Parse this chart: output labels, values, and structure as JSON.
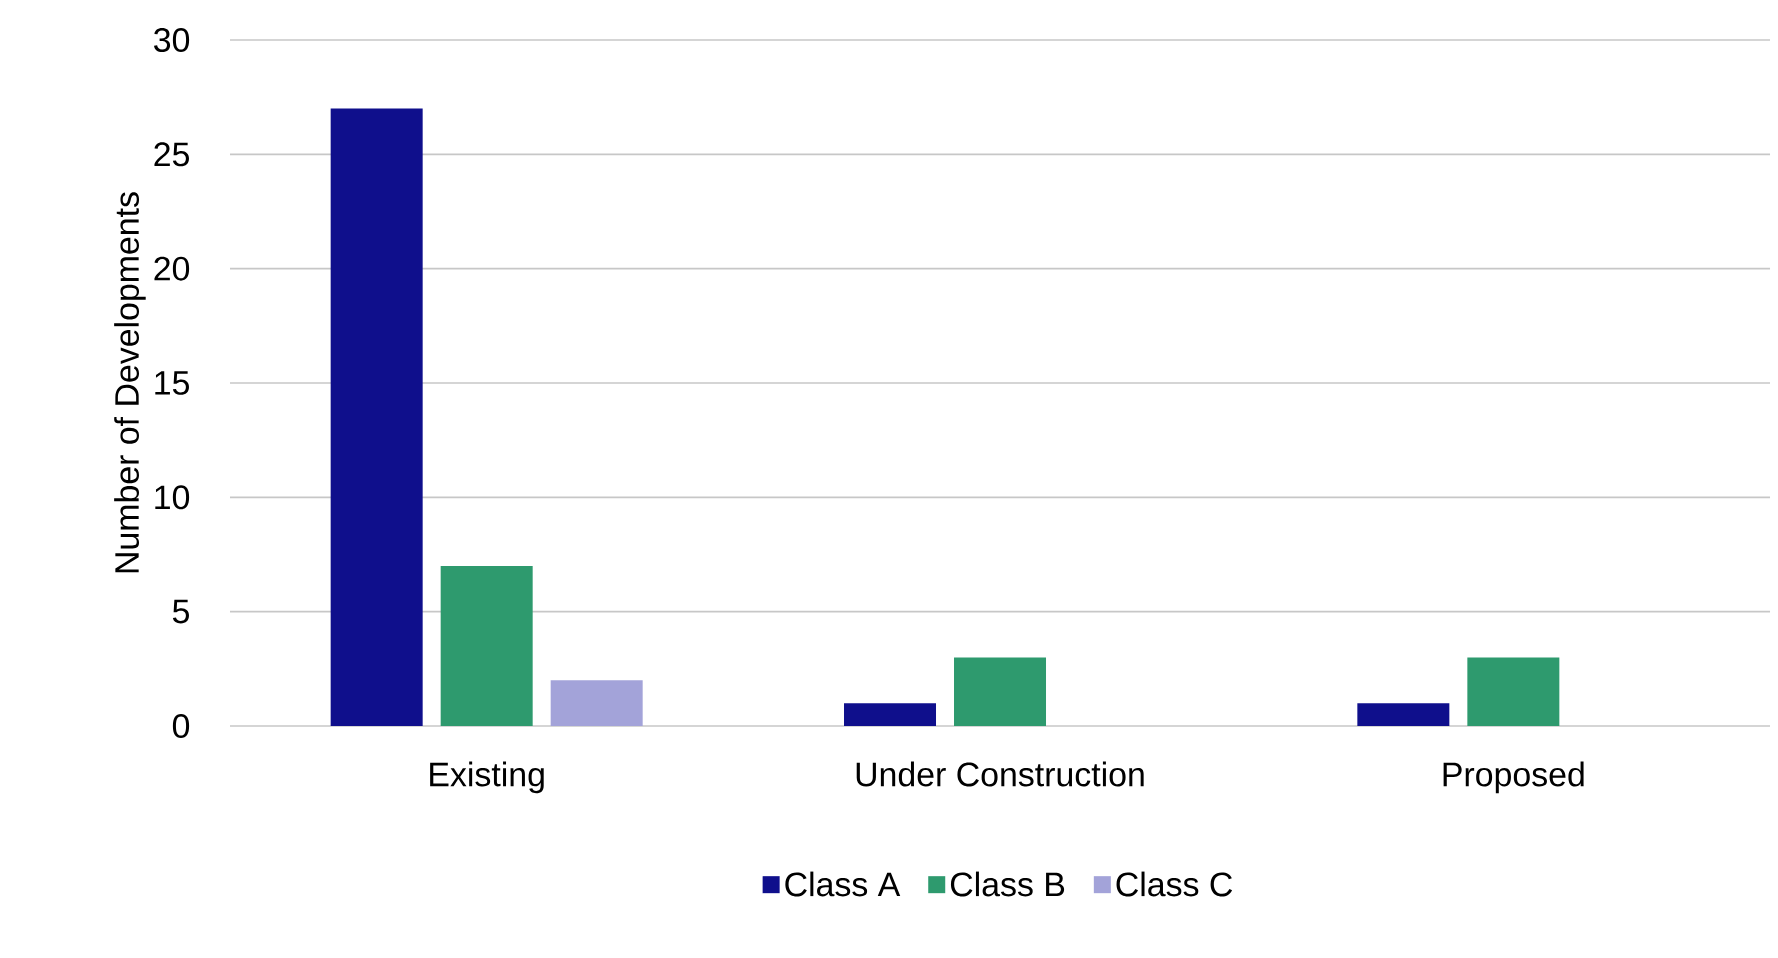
{
  "chart_data": {
    "type": "bar",
    "ylabel": "Number of Developments",
    "categories": [
      "Existing",
      "Under Construction",
      "Proposed"
    ],
    "series": [
      {
        "name": "Class A",
        "color": "#0f0f8c",
        "values": [
          27,
          1,
          1
        ]
      },
      {
        "name": "Class B",
        "color": "#2e9a6e",
        "values": [
          7,
          3,
          3
        ]
      },
      {
        "name": "Class C",
        "color": "#a3a3d9",
        "values": [
          2,
          0,
          0
        ]
      }
    ],
    "ylim": [
      0,
      30
    ],
    "yticks": [
      0,
      5,
      10,
      15,
      20,
      25,
      30
    ],
    "grid": "y",
    "legend": "bottom"
  }
}
